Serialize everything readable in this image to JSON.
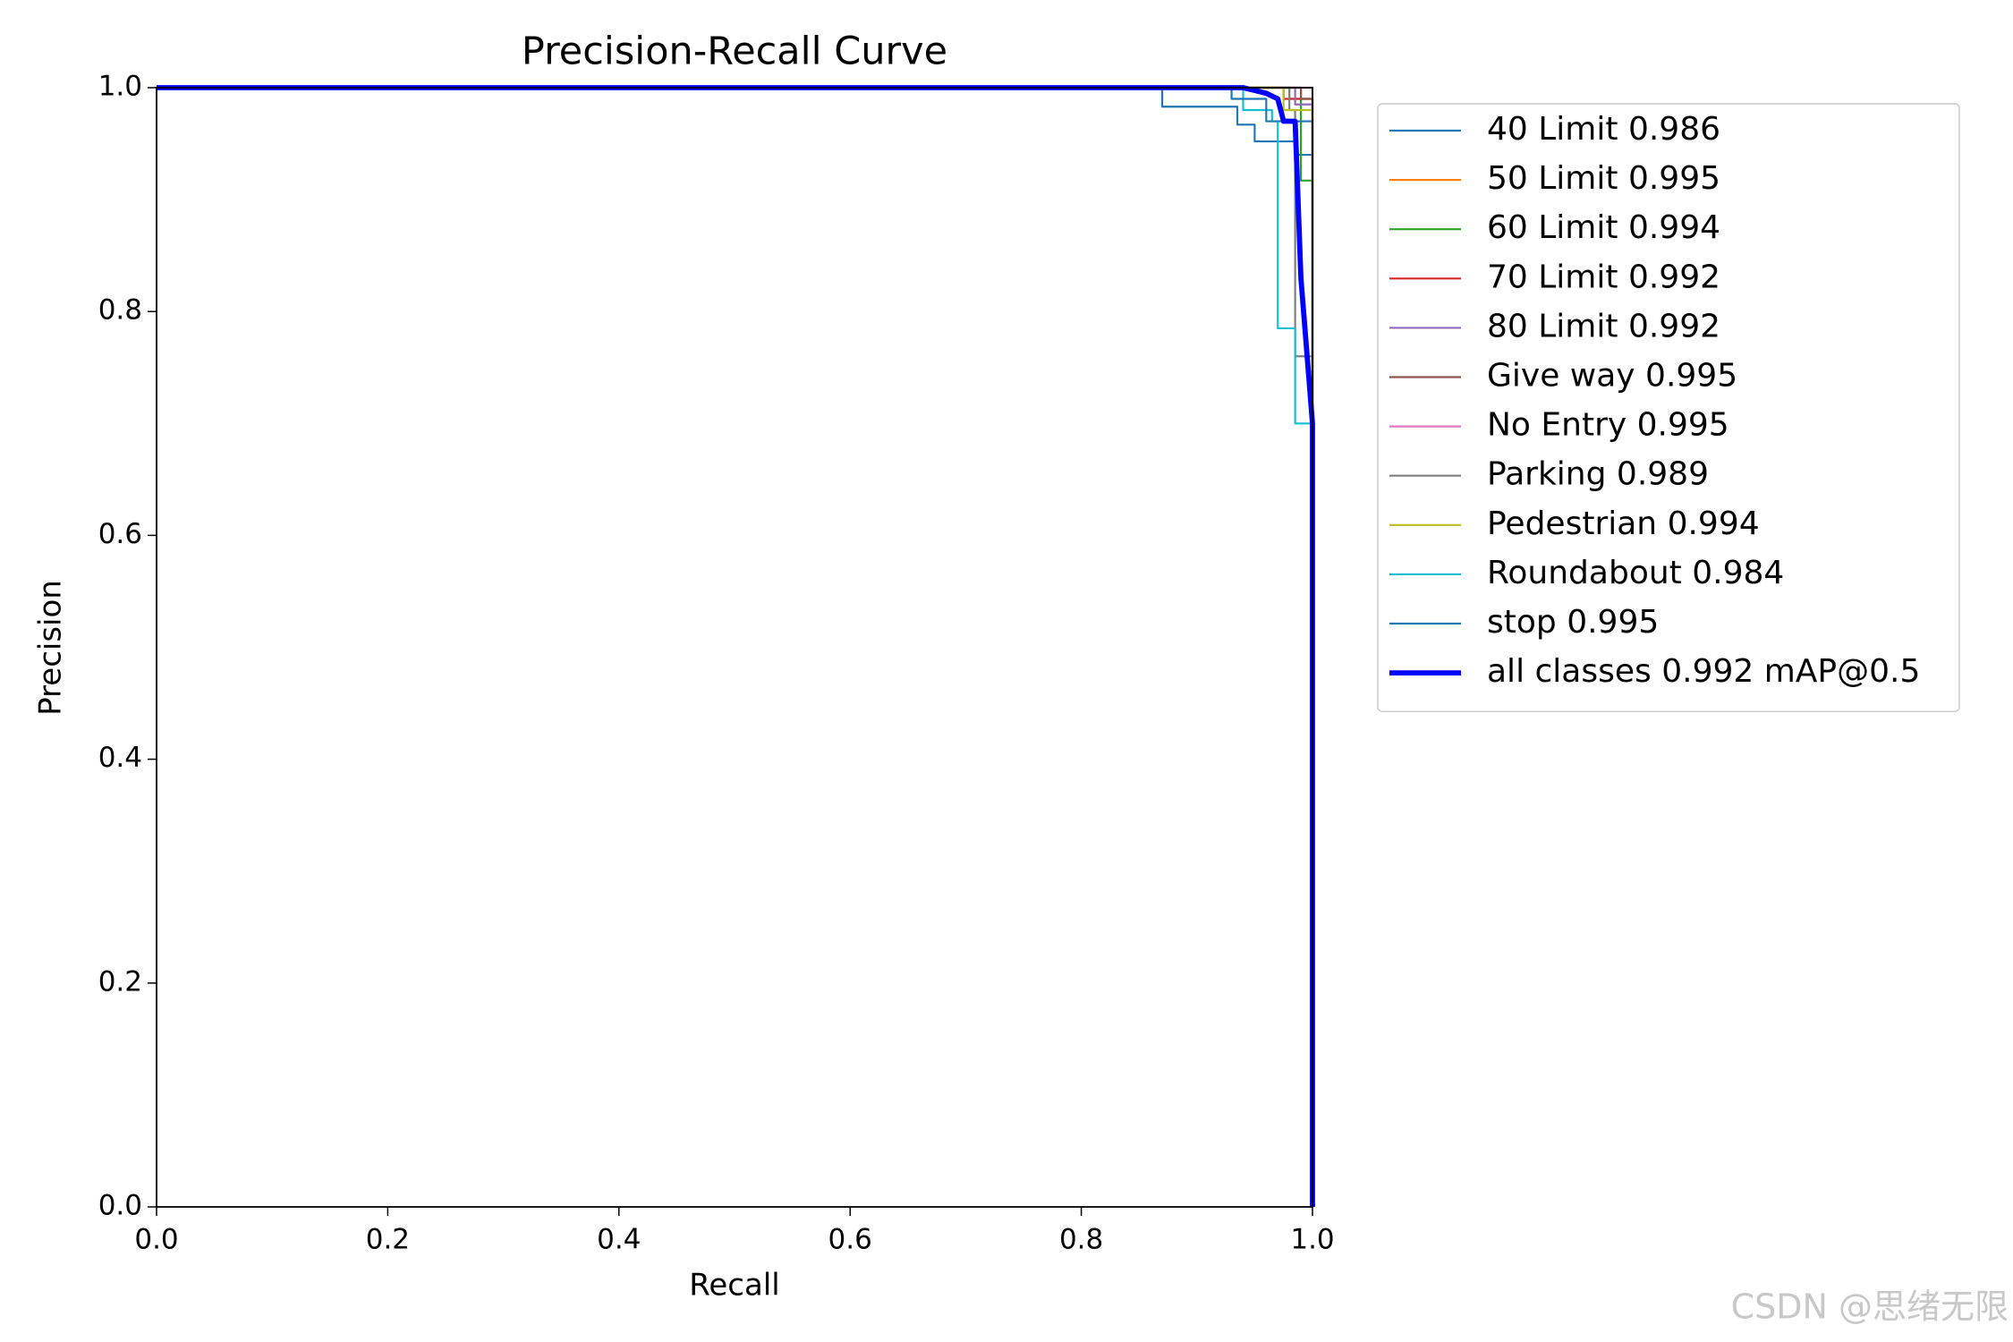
{
  "chart_data": {
    "type": "line",
    "title": "Precision-Recall Curve",
    "xlabel": "Recall",
    "ylabel": "Precision",
    "xlim": [
      0,
      1
    ],
    "ylim": [
      0,
      1
    ],
    "xticks": [
      {
        "value": 0,
        "label": "0.0"
      },
      0.2,
      0.4,
      0.6,
      0.8,
      {
        "value": 1,
        "label": "1.0"
      }
    ],
    "yticks": [
      {
        "value": 0,
        "label": "0.0"
      },
      0.2,
      0.4,
      0.6,
      0.8,
      {
        "value": 1,
        "label": "1.0"
      }
    ],
    "grid": false,
    "legend": "outside-right",
    "series": [
      {
        "name": "40 Limit 0.986",
        "color": "#1f77b4",
        "linewidth": 1.5,
        "x": [
          0,
          0.87,
          0.87,
          0.935,
          0.935,
          0.95,
          0.95,
          0.985,
          0.985,
          1,
          1
        ],
        "values": [
          1,
          1,
          0.983,
          0.983,
          0.967,
          0.967,
          0.952,
          0.952,
          0.94,
          0.94,
          0
        ]
      },
      {
        "name": "50 Limit 0.995",
        "color": "#ff7f0e",
        "linewidth": 1.5,
        "x": [
          0,
          0.98,
          0.98,
          1,
          1
        ],
        "values": [
          1,
          1,
          0.99,
          0.99,
          0
        ]
      },
      {
        "name": "60 Limit 0.994",
        "color": "#2ca02c",
        "linewidth": 1.5,
        "x": [
          0,
          0.99,
          0.99,
          1,
          1
        ],
        "values": [
          1,
          1,
          0.917,
          0.917,
          0
        ]
      },
      {
        "name": "70 Limit 0.992",
        "color": "#d62728",
        "linewidth": 1.5,
        "x": [
          0,
          0.975,
          0.975,
          1,
          1
        ],
        "values": [
          1,
          1,
          0.99,
          0.99,
          0
        ]
      },
      {
        "name": "80 Limit 0.992",
        "color": "#9467bd",
        "linewidth": 1.5,
        "x": [
          0,
          0.985,
          0.985,
          1,
          1
        ],
        "values": [
          1,
          1,
          0.985,
          0.985,
          0
        ]
      },
      {
        "name": "Give way 0.995",
        "color": "#8c564b",
        "linewidth": 1.5,
        "x": [
          0,
          0.99,
          0.99,
          1,
          1
        ],
        "values": [
          1,
          1,
          0.99,
          0.99,
          0
        ]
      },
      {
        "name": "No Entry 0.995",
        "color": "#e377c2",
        "linewidth": 1.5,
        "x": [
          0,
          1,
          1
        ],
        "values": [
          1,
          1,
          0
        ]
      },
      {
        "name": "Parking 0.989",
        "color": "#7f7f7f",
        "linewidth": 1.5,
        "x": [
          0,
          0.98,
          0.98,
          0.985,
          0.985,
          1,
          1
        ],
        "values": [
          1,
          1,
          0.98,
          0.98,
          0.76,
          0.76,
          0
        ]
      },
      {
        "name": "Pedestrian 0.994",
        "color": "#bcbd22",
        "linewidth": 1.5,
        "x": [
          0,
          0.975,
          0.975,
          1,
          1
        ],
        "values": [
          1,
          1,
          0.98,
          0.98,
          0
        ]
      },
      {
        "name": "Roundabout 0.984",
        "color": "#17becf",
        "linewidth": 1.5,
        "x": [
          0,
          0.94,
          0.94,
          0.965,
          0.965,
          0.97,
          0.97,
          0.985,
          0.985,
          1,
          1
        ],
        "values": [
          1,
          1,
          0.98,
          0.98,
          0.97,
          0.97,
          0.785,
          0.785,
          0.7,
          0.7,
          0
        ]
      },
      {
        "name": "stop 0.995",
        "color": "#1f77b4",
        "linewidth": 1.5,
        "x": [
          0,
          0.93,
          0.93,
          0.96,
          0.96,
          1,
          1
        ],
        "values": [
          1,
          1,
          0.99,
          0.99,
          0.97,
          0.97,
          0
        ]
      },
      {
        "name": "all classes 0.992 mAP@0.5",
        "color": "#0000ff",
        "linewidth": 4,
        "x": [
          0,
          0.94,
          0.96,
          0.97,
          0.975,
          0.985,
          0.99,
          1,
          1
        ],
        "values": [
          1,
          1,
          0.995,
          0.99,
          0.97,
          0.97,
          0.83,
          0.7,
          0
        ]
      }
    ]
  },
  "watermark": "CSDN @思绪无限"
}
